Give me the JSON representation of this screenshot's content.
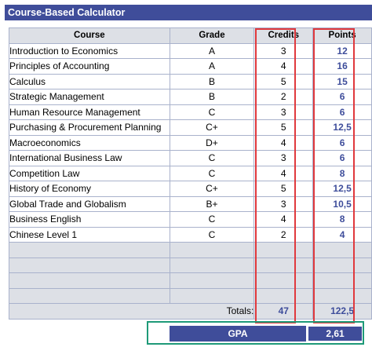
{
  "title": "Course-Based Calculator",
  "headers": {
    "course": "Course",
    "grade": "Grade",
    "credits": "Credits",
    "points": "Points"
  },
  "rows": [
    {
      "course": "Introduction to Economics",
      "grade": "A",
      "credits": "3",
      "points": "12"
    },
    {
      "course": "Principles of Accounting",
      "grade": "A",
      "credits": "4",
      "points": "16"
    },
    {
      "course": "Calculus",
      "grade": "B",
      "credits": "5",
      "points": "15"
    },
    {
      "course": "Strategic Management",
      "grade": "B",
      "credits": "2",
      "points": "6"
    },
    {
      "course": "Human Resource Management",
      "grade": "C",
      "credits": "3",
      "points": "6"
    },
    {
      "course": "Purchasing & Procurement Planning",
      "grade": "C+",
      "credits": "5",
      "points": "12,5"
    },
    {
      "course": "Macroeconomics",
      "grade": "D+",
      "credits": "4",
      "points": "6"
    },
    {
      "course": "International Business Law",
      "grade": "C",
      "credits": "3",
      "points": "6"
    },
    {
      "course": "Competition Law",
      "grade": "C",
      "credits": "4",
      "points": "8"
    },
    {
      "course": "History of Economy",
      "grade": "C+",
      "credits": "5",
      "points": "12,5"
    },
    {
      "course": "Global Trade and Globalism",
      "grade": "B+",
      "credits": "3",
      "points": "10,5"
    },
    {
      "course": "Business English",
      "grade": "C",
      "credits": "4",
      "points": "8"
    },
    {
      "course": "Chinese Level 1",
      "grade": "C",
      "credits": "2",
      "points": "4"
    }
  ],
  "empty_rows": 4,
  "totals": {
    "label": "Totals:",
    "credits": "47",
    "points": "122,5"
  },
  "gpa": {
    "label": "GPA",
    "value": "2,61"
  },
  "colors": {
    "header_blue": "#3f4d9a",
    "points_text": "#3e4d9b",
    "highlight_red": "#e0393d",
    "highlight_green": "#1e9a78"
  }
}
